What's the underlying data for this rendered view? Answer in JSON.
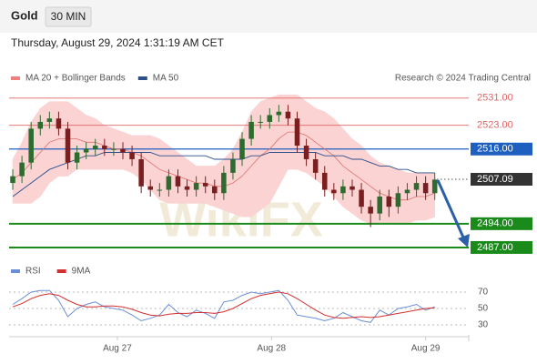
{
  "header": {
    "title": "Gold",
    "timeframe": "30 MIN",
    "datetime": "Thursday, August 29, 2024 1:31:19 AM CET"
  },
  "source": "Research © 2024 Trading Central",
  "watermark": "WikiFX",
  "chart_data": [
    {
      "type": "candlestick",
      "open": [
        2506,
        2508,
        2512,
        2522,
        2524,
        2525,
        2522,
        2512,
        2515,
        2516,
        2517,
        2516,
        2516,
        2515,
        2513,
        2505,
        2504,
        2504,
        2508,
        2505,
        2504,
        2506,
        2505,
        2503,
        2509,
        2513,
        2519,
        2524,
        2524,
        2526,
        2527,
        2525,
        2517,
        2513,
        2509,
        2504,
        2503,
        2505,
        2504,
        2499,
        2497,
        2502,
        2499,
        2503,
        2504,
        2506,
        2503
      ],
      "high": [
        2510,
        2514,
        2524,
        2526,
        2527,
        2527,
        2524,
        2517,
        2518,
        2519,
        2519,
        2518,
        2518,
        2517,
        2515,
        2507,
        2506,
        2510,
        2510,
        2507,
        2508,
        2508,
        2507,
        2511,
        2515,
        2521,
        2526,
        2526,
        2528,
        2529,
        2529,
        2527,
        2519,
        2515,
        2511,
        2506,
        2507,
        2507,
        2506,
        2501,
        2504,
        2504,
        2505,
        2506,
        2508,
        2508,
        2509
      ],
      "low": [
        2504,
        2506,
        2510,
        2520,
        2522,
        2520,
        2510,
        2510,
        2513,
        2514,
        2514,
        2514,
        2513,
        2511,
        2503,
        2502,
        2502,
        2502,
        2503,
        2502,
        2502,
        2503,
        2501,
        2501,
        2507,
        2511,
        2517,
        2522,
        2522,
        2524,
        2523,
        2515,
        2511,
        2507,
        2502,
        2501,
        2501,
        2502,
        2497,
        2493,
        2495,
        2496,
        2497,
        2501,
        2502,
        2501,
        2501
      ],
      "close": [
        2508,
        2512,
        2522,
        2524,
        2525,
        2522,
        2512,
        2515,
        2516,
        2517,
        2516,
        2516,
        2515,
        2513,
        2505,
        2504,
        2504,
        2508,
        2505,
        2504,
        2506,
        2505,
        2503,
        2509,
        2513,
        2519,
        2524,
        2524,
        2526,
        2527,
        2525,
        2517,
        2513,
        2509,
        2504,
        2503,
        2505,
        2504,
        2499,
        2497,
        2502,
        2499,
        2503,
        2504,
        2506,
        2503,
        2507
      ],
      "up_color": "#2e6b2e",
      "down_color": "#7a1f1f",
      "band": {
        "name": "MA 20 + Bollinger Bands",
        "color": "#f08080",
        "middle": [
          2507,
          2509,
          2512,
          2515,
          2518,
          2519,
          2519,
          2519,
          2518,
          2518,
          2517,
          2516,
          2516,
          2515,
          2514,
          2512,
          2510,
          2509,
          2508,
          2507,
          2506,
          2506,
          2505,
          2505,
          2506,
          2508,
          2511,
          2514,
          2516,
          2519,
          2521,
          2521,
          2520,
          2518,
          2516,
          2514,
          2511,
          2509,
          2507,
          2505,
          2503,
          2502,
          2501,
          2501,
          2502,
          2502,
          2503
        ],
        "upper": [
          2513,
          2518,
          2524,
          2528,
          2530,
          2530,
          2530,
          2528,
          2526,
          2525,
          2523,
          2522,
          2521,
          2520,
          2520,
          2520,
          2519,
          2517,
          2515,
          2513,
          2511,
          2511,
          2511,
          2513,
          2516,
          2521,
          2527,
          2530,
          2531,
          2532,
          2532,
          2532,
          2530,
          2528,
          2527,
          2525,
          2522,
          2519,
          2517,
          2514,
          2512,
          2511,
          2510,
          2509,
          2509,
          2509,
          2509
        ],
        "lower": [
          2500,
          2500,
          2500,
          2502,
          2506,
          2508,
          2508,
          2510,
          2510,
          2510,
          2510,
          2510,
          2510,
          2509,
          2507,
          2504,
          2501,
          2500,
          2500,
          2500,
          2500,
          2500,
          2499,
          2498,
          2497,
          2496,
          2496,
          2498,
          2500,
          2505,
          2510,
          2510,
          2509,
          2507,
          2505,
          2502,
          2499,
          2497,
          2495,
          2494,
          2494,
          2494,
          2494,
          2494,
          2495,
          2495,
          2496
        ]
      },
      "series": [
        {
          "name": "MA 50",
          "color": "#2c4f8c",
          "values": [
            2502,
            2504,
            2506,
            2508,
            2510,
            2511,
            2512,
            2513,
            2514,
            2514,
            2515,
            2515,
            2515,
            2515,
            2515,
            2515,
            2514,
            2514,
            2514,
            2514,
            2514,
            2514,
            2513,
            2513,
            2513,
            2513,
            2514,
            2514,
            2515,
            2515,
            2515,
            2515,
            2515,
            2515,
            2514,
            2514,
            2514,
            2513,
            2513,
            2512,
            2511,
            2511,
            2510,
            2510,
            2509,
            2509,
            2509
          ]
        }
      ],
      "levels": [
        {
          "value": 2531,
          "label": "2531.00",
          "color": "#e06666",
          "style": "thin"
        },
        {
          "value": 2523,
          "label": "2523.00",
          "color": "#e06666",
          "style": "thin"
        },
        {
          "value": 2516,
          "label": "2516.00",
          "color": "#1f5fbf",
          "style": "box"
        },
        {
          "value": 2507.09,
          "label": "2507.09",
          "color": "#333333",
          "style": "current"
        },
        {
          "value": 2494,
          "label": "2494.00",
          "color": "#1a8a1a",
          "style": "thick"
        },
        {
          "value": 2487,
          "label": "2487.00",
          "color": "#1a8a1a",
          "style": "thick"
        }
      ],
      "xlim": [
        -0.4,
        49.7
      ],
      "ylim": [
        2483.5,
        2533.1
      ]
    },
    {
      "type": "line",
      "series": [
        {
          "name": "RSI",
          "color": "#6b8fd6",
          "values": [
            55,
            62,
            70,
            72,
            72,
            60,
            40,
            50,
            55,
            58,
            52,
            50,
            48,
            42,
            35,
            38,
            42,
            55,
            45,
            40,
            48,
            44,
            38,
            58,
            60,
            66,
            70,
            68,
            70,
            72,
            60,
            42,
            40,
            38,
            35,
            38,
            45,
            40,
            35,
            33,
            48,
            42,
            50,
            52,
            55,
            48,
            52
          ]
        },
        {
          "name": "9MA",
          "color": "#d32f2f",
          "values": [
            52,
            56,
            62,
            66,
            68,
            66,
            60,
            55,
            52,
            52,
            53,
            53,
            52,
            49,
            45,
            42,
            41,
            43,
            44,
            44,
            45,
            45,
            44,
            46,
            50,
            56,
            62,
            66,
            68,
            70,
            68,
            62,
            55,
            48,
            42,
            39,
            38,
            39,
            40,
            39,
            40,
            42,
            44,
            46,
            48,
            50,
            51
          ]
        }
      ],
      "xlim": [
        -0.4,
        49.7
      ],
      "ylim": [
        21.1,
        76.7
      ],
      "yticks": [
        30,
        50,
        70
      ],
      "xticks": [
        {
          "value": 11.4,
          "label": "Aug 27"
        },
        {
          "value": 28.2,
          "label": "Aug 28"
        },
        {
          "value": 45,
          "label": "Aug 29"
        }
      ]
    }
  ]
}
